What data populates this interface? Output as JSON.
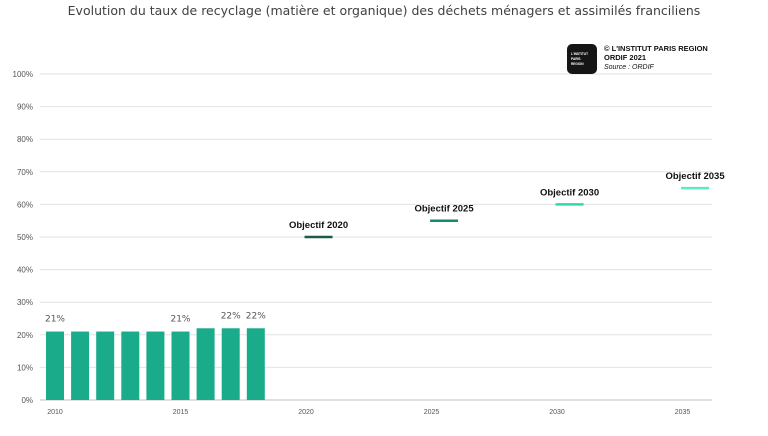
{
  "chart_data": {
    "type": "bar",
    "title": "Evolution du taux de recyclage (matière et organique) des déchets ménagers et assimilés franciliens",
    "xlabel": "",
    "ylabel": "",
    "ylim": [
      0,
      100
    ],
    "y_ticks": [
      "0%",
      "10%",
      "20%",
      "30%",
      "40%",
      "50%",
      "60%",
      "70%",
      "80%",
      "90%",
      "100%"
    ],
    "xlim": [
      2010,
      2036
    ],
    "x_ticks": [
      "2010",
      "2015",
      "2020",
      "2025",
      "2030",
      "2035"
    ],
    "grid": "horizontal",
    "bar_color": "#1aab8a",
    "series": [
      {
        "x": [
          2010,
          2011,
          2012,
          2013,
          2014,
          2015,
          2016,
          2017,
          2018
        ],
        "values": [
          21,
          21,
          21,
          21,
          21,
          21,
          22,
          22,
          22
        ],
        "labels": [
          "21%",
          "",
          "",
          "",
          "",
          "21%",
          "",
          "22%",
          "22%"
        ]
      }
    ],
    "targets": [
      {
        "label": "Objectif 2020",
        "x": 2020.5,
        "value": 50,
        "color": "#1e5a4a"
      },
      {
        "label": "Objectif 2025",
        "x": 2025.5,
        "value": 55,
        "color": "#178a6c"
      },
      {
        "label": "Objectif 2030",
        "x": 2030.5,
        "value": 60,
        "color": "#2cd9aa"
      },
      {
        "label": "Objectif 2035",
        "x": 2035.5,
        "value": 65,
        "color": "#5ee8c8"
      }
    ]
  },
  "credits": {
    "line1": "© L'INSTITUT PARIS REGION",
    "line2": "ORDIF 2021",
    "line3": "Source : ORDIF"
  },
  "logo": {
    "line1": "L'INSTITUT",
    "line2": "PARIS",
    "line3": "REGION"
  }
}
